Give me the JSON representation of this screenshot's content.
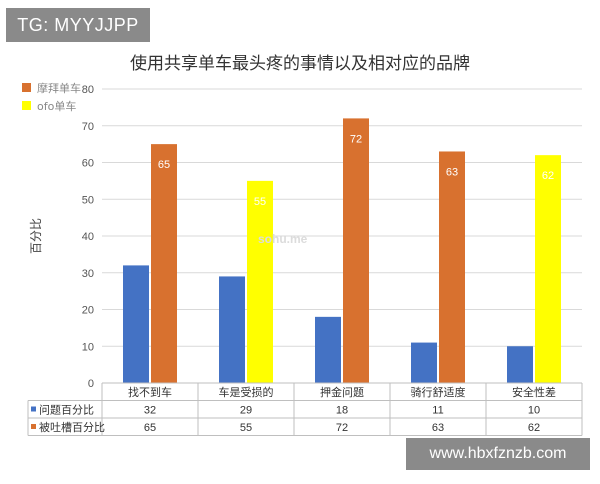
{
  "tag_label": "TG: MYYJJPP",
  "footer_url": "www.hbxfznzb.com",
  "watermark": "sohu.me",
  "chart_data": {
    "type": "bar",
    "title": "使用共享单车最头疼的事情以及相对应的品牌",
    "ylabel": "百分比",
    "xlabel": "",
    "ylim": [
      0,
      80
    ],
    "yticks": [
      0,
      10,
      20,
      30,
      40,
      50,
      60,
      70,
      80
    ],
    "categories": [
      "找不到车",
      "车是受损的",
      "押金问题",
      "骑行舒适度",
      "安全性差"
    ],
    "legend": {
      "placement": "top-left",
      "items": [
        {
          "name": "摩拜单车",
          "color": "#d8712f"
        },
        {
          "name": "ofo单车",
          "color": "#ffff00"
        }
      ]
    },
    "series": [
      {
        "name": "问题百分比",
        "values": [
          32,
          29,
          18,
          11,
          10
        ],
        "colors": [
          "#4472c4",
          "#4472c4",
          "#4472c4",
          "#4472c4",
          "#4472c4"
        ],
        "marker_color": "#4472c4"
      },
      {
        "name": "被吐槽百分比",
        "values": [
          65,
          55,
          72,
          63,
          62
        ],
        "colors": [
          "#d8712f",
          "#ffff00",
          "#d8712f",
          "#d8712f",
          "#ffff00"
        ],
        "marker_color": "#d8712f"
      }
    ],
    "grid": true
  }
}
